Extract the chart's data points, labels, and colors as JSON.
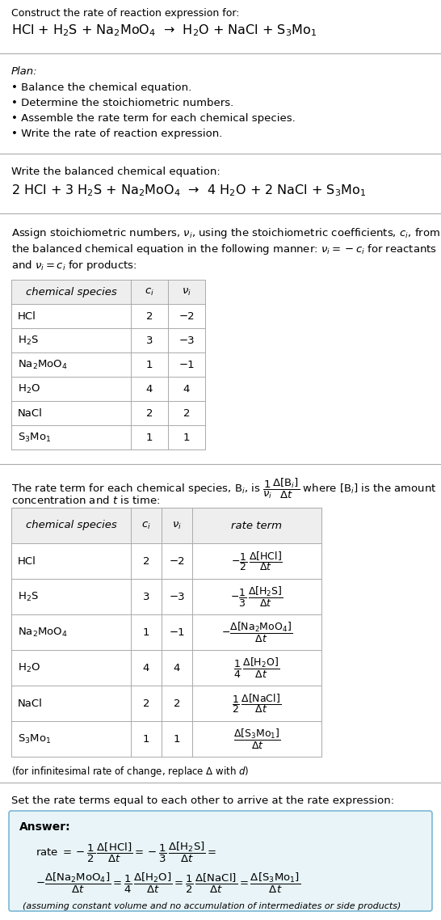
{
  "title_line1": "Construct the rate of reaction expression for:",
  "reaction_unbalanced": "HCl + H$_2$S + Na$_2$MoO$_4$  →  H$_2$O + NaCl + S$_3$Mo$_1$",
  "plan_header": "Plan:",
  "plan_items": [
    "• Balance the chemical equation.",
    "• Determine the stoichiometric numbers.",
    "• Assemble the rate term for each chemical species.",
    "• Write the rate of reaction expression."
  ],
  "balanced_header": "Write the balanced chemical equation:",
  "reaction_balanced": "2 HCl + 3 H$_2$S + Na$_2$MoO$_4$  →  4 H$_2$O + 2 NaCl + S$_3$Mo$_1$",
  "stoich_lines": [
    "Assign stoichiometric numbers, $\\nu_i$, using the stoichiometric coefficients, $c_i$, from",
    "the balanced chemical equation in the following manner: $\\nu_i = -c_i$ for reactants",
    "and $\\nu_i = c_i$ for products:"
  ],
  "table1_headers": [
    "chemical species",
    "$c_i$",
    "$\\nu_i$"
  ],
  "table1_data": [
    [
      "HCl",
      "2",
      "−2"
    ],
    [
      "H$_2$S",
      "3",
      "−3"
    ],
    [
      "Na$_2$MoO$_4$",
      "1",
      "−1"
    ],
    [
      "H$_2$O",
      "4",
      "4"
    ],
    [
      "NaCl",
      "2",
      "2"
    ],
    [
      "S$_3$Mo$_1$",
      "1",
      "1"
    ]
  ],
  "rate_term_line1": "The rate term for each chemical species, B$_i$, is $\\dfrac{1}{\\nu_i}\\dfrac{\\Delta[\\mathrm{B}_i]}{\\Delta t}$ where [B$_i$] is the amount",
  "rate_term_line2": "concentration and $t$ is time:",
  "table2_headers": [
    "chemical species",
    "$c_i$",
    "$\\nu_i$",
    "rate term"
  ],
  "table2_data": [
    [
      "HCl",
      "2",
      "−2",
      "$-\\dfrac{1}{2}\\,\\dfrac{\\Delta[\\mathrm{HCl}]}{\\Delta t}$"
    ],
    [
      "H$_2$S",
      "3",
      "−3",
      "$-\\dfrac{1}{3}\\,\\dfrac{\\Delta[\\mathrm{H_2S}]}{\\Delta t}$"
    ],
    [
      "Na$_2$MoO$_4$",
      "1",
      "−1",
      "$-\\dfrac{\\Delta[\\mathrm{Na_2MoO_4}]}{\\Delta t}$"
    ],
    [
      "H$_2$O",
      "4",
      "4",
      "$\\dfrac{1}{4}\\,\\dfrac{\\Delta[\\mathrm{H_2O}]}{\\Delta t}$"
    ],
    [
      "NaCl",
      "2",
      "2",
      "$\\dfrac{1}{2}\\,\\dfrac{\\Delta[\\mathrm{NaCl}]}{\\Delta t}$"
    ],
    [
      "S$_3$Mo$_1$",
      "1",
      "1",
      "$\\dfrac{\\Delta[\\mathrm{S_3Mo_1}]}{\\Delta t}$"
    ]
  ],
  "infinitesimal_note": "(for infinitesimal rate of change, replace Δ with $d$)",
  "set_rate_text": "Set the rate terms equal to each other to arrive at the rate expression:",
  "answer_label": "Answer:",
  "answer_box_color": "#e8f4f8",
  "answer_box_border": "#7ab8d4",
  "assuming_note": "(assuming constant volume and no accumulation of intermediates or side products)",
  "bg_color": "#ffffff",
  "text_color": "#000000",
  "rule_color": "#aaaaaa",
  "table_header_bg": "#eeeeee",
  "table_line_color": "#aaaaaa"
}
